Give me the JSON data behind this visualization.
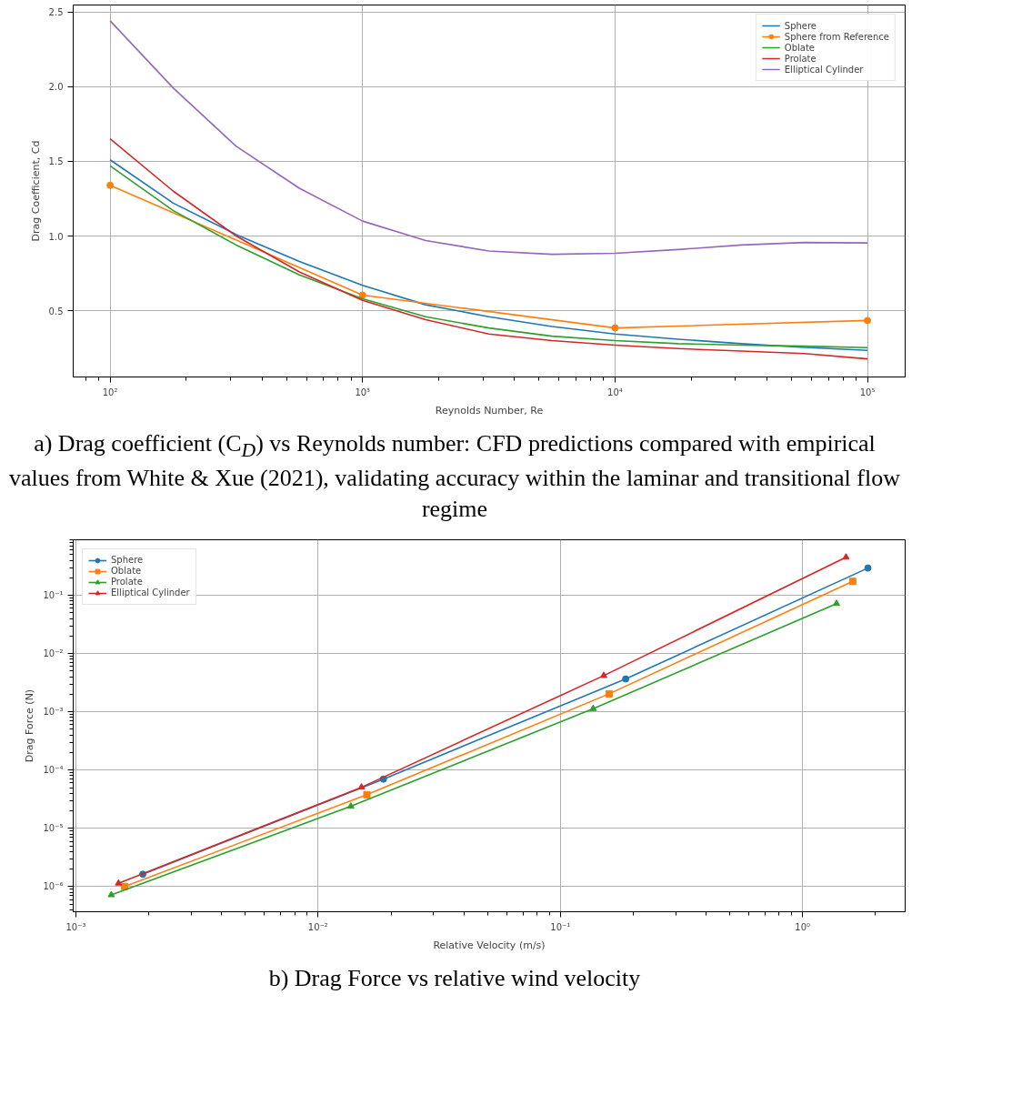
{
  "chart_data": [
    {
      "type": "line",
      "xlabel": "Reynolds Number, Re",
      "ylabel": "Drag Coefficient, Cd",
      "log": "x",
      "grid": true,
      "legend": "top right",
      "xlim": [
        71.4,
        141000
      ],
      "ylim": [
        0.057,
        2.546
      ],
      "xticks": [
        {
          "value": 100,
          "label": "10²"
        },
        {
          "value": 1000,
          "label": "10³"
        },
        {
          "value": 10000,
          "label": "10⁴"
        },
        {
          "value": 100000,
          "label": "10⁵"
        }
      ],
      "yticks": [
        {
          "value": 0.5,
          "label": "0.5"
        },
        {
          "value": 1,
          "label": "1.0"
        },
        {
          "value": 1.5,
          "label": "1.5"
        },
        {
          "value": 2,
          "label": "2.0"
        },
        {
          "value": 2.5,
          "label": "2.5"
        }
      ],
      "x": [
        100,
        178,
        316,
        562,
        1000,
        1778,
        3162,
        5623,
        10000,
        17783,
        31623,
        56234,
        100000
      ],
      "series": [
        {
          "name": "Sphere",
          "color": "#1f77b4",
          "values": [
            1.51,
            1.22,
            1.01,
            0.83,
            0.67,
            0.54,
            0.46,
            0.395,
            0.345,
            0.31,
            0.28,
            0.255,
            0.235
          ]
        },
        {
          "name": "Sphere from Reference",
          "color": "#ff7f0e",
          "marker": "circle",
          "x": [
            100,
            1000,
            10000,
            100000
          ],
          "values": [
            1.34,
            0.605,
            0.385,
            0.435
          ]
        },
        {
          "name": "Oblate",
          "color": "#2ca02c",
          "values": [
            1.47,
            1.17,
            0.94,
            0.74,
            0.58,
            0.46,
            0.385,
            0.33,
            0.3,
            0.28,
            0.27,
            0.263,
            0.253
          ]
        },
        {
          "name": "Prolate",
          "color": "#d62728",
          "values": [
            1.65,
            1.3,
            1.0,
            0.76,
            0.57,
            0.44,
            0.345,
            0.3,
            0.27,
            0.247,
            0.23,
            0.214,
            0.178
          ]
        },
        {
          "name": "Elliptical Cylinder",
          "color": "#9467bd",
          "values": [
            2.44,
            1.99,
            1.6,
            1.32,
            1.1,
            0.97,
            0.9,
            0.878,
            0.885,
            0.91,
            0.94,
            0.957,
            0.954
          ]
        }
      ],
      "annotations": [
        "a) Drag coefficient (C$_{D}$) vs Reynolds number: CFD predictions compared with empirical values from White & Xue (2021), validating accuracy within the laminar and transitional flow regime"
      ]
    },
    {
      "type": "line",
      "xlabel": "Relative Velocity (m/s)",
      "ylabel": "Drag Force (N)",
      "log": "xy",
      "grid": true,
      "legend": "top left",
      "xlim": [
        0.000975,
        2.65
      ],
      "ylim": [
        3.7e-07,
        0.9
      ],
      "xticks": [
        {
          "value": 0.001,
          "label": "10⁻³"
        },
        {
          "value": 0.01,
          "label": "10⁻²"
        },
        {
          "value": 0.1,
          "label": "10⁻¹"
        },
        {
          "value": 1,
          "label": "10⁰"
        }
      ],
      "yticks": [
        {
          "value": 1e-06,
          "label": "10⁻⁶"
        },
        {
          "value": 1e-05,
          "label": "10⁻⁵"
        },
        {
          "value": 0.0001,
          "label": "10⁻⁴"
        },
        {
          "value": 0.001,
          "label": "10⁻³"
        },
        {
          "value": 0.01,
          "label": "10⁻²"
        },
        {
          "value": 0.1,
          "label": "10⁻¹"
        }
      ],
      "series": [
        {
          "name": "Sphere",
          "color": "#1f77b4",
          "marker": "circle",
          "x": [
            0.00189,
            0.0186,
            0.186,
            1.86
          ],
          "values": [
            1.63e-06,
            7e-05,
            0.00367,
            0.294
          ]
        },
        {
          "name": "Oblate",
          "color": "#ff7f0e",
          "marker": "square",
          "x": [
            0.00159,
            0.0159,
            0.159,
            1.61
          ],
          "values": [
            1e-06,
            3.78e-05,
            0.00204,
            0.174
          ]
        },
        {
          "name": "Prolate",
          "color": "#2ca02c",
          "marker": "triangle",
          "x": [
            0.0014,
            0.01365,
            0.1365,
            1.38
          ],
          "values": [
            7.2e-07,
            2.39e-05,
            0.00113,
            0.072
          ]
        },
        {
          "name": "Elliptical Cylinder",
          "color": "#d62728",
          "marker": "triangle",
          "x": [
            0.0015,
            0.0151,
            0.151,
            1.51
          ],
          "values": [
            1.14e-06,
            5.07e-05,
            0.00419,
            0.45
          ]
        }
      ],
      "annotations": [
        "b) Drag Force vs relative wind velocity"
      ]
    }
  ]
}
